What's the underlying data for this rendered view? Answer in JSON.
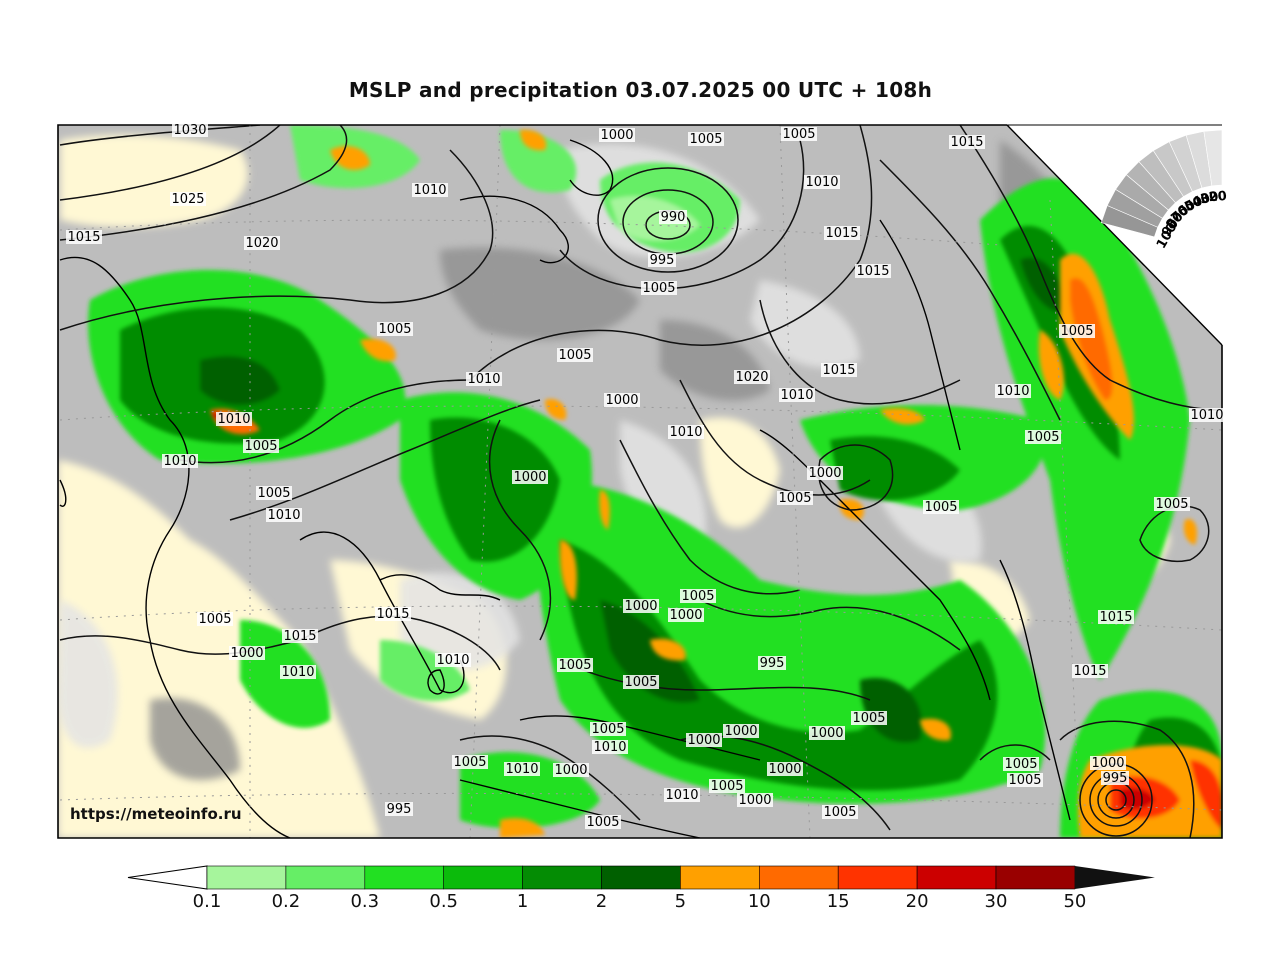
{
  "title": "MSLP and precipitation 03.07.2025 00 UTC + 108h",
  "credit": "https://meteoinfo.ru",
  "colorbar": {
    "ticks": [
      "0.1",
      "0.2",
      "0.3",
      "0.5",
      "1",
      "2",
      "5",
      "10",
      "15",
      "20",
      "30",
      "50"
    ],
    "colors": [
      "#a6f59c",
      "#66ee66",
      "#22e022",
      "#0bbb0b",
      "#048c04",
      "#006000",
      "#ffa000",
      "#ff6a00",
      "#ff3300",
      "#cc0000",
      "#990000"
    ],
    "under_color": "#ffffff",
    "over_color": "#111111"
  },
  "cloud_wedge": {
    "labels": [
      "100",
      "90",
      "80",
      "70",
      "60",
      "50",
      "40",
      "30",
      "20"
    ]
  },
  "isobar_labels": [
    "1030",
    "1025",
    "1015",
    "1020",
    "1010",
    "1000",
    "1005",
    "1005",
    "1015",
    "990",
    "995",
    "1005",
    "1010",
    "1015",
    "1015",
    "1005",
    "1010",
    "1005",
    "1000",
    "1020",
    "1015",
    "1010",
    "1010",
    "1005",
    "1010",
    "1005",
    "1010",
    "1005",
    "1000",
    "1000",
    "1005",
    "1015",
    "1010",
    "1005",
    "1010",
    "1000",
    "1005",
    "1015",
    "1010",
    "1010",
    "1005",
    "1000",
    "1000",
    "1005",
    "995",
    "1005",
    "1005",
    "1005",
    "1005",
    "1010",
    "1000",
    "1000",
    "1010",
    "1000",
    "1005",
    "1010",
    "1000",
    "1005",
    "1000",
    "1005",
    "1005",
    "1000",
    "995",
    "1005",
    "1005",
    "1005",
    "1000",
    "995",
    "1010",
    "1005",
    "1015",
    "1015"
  ]
}
